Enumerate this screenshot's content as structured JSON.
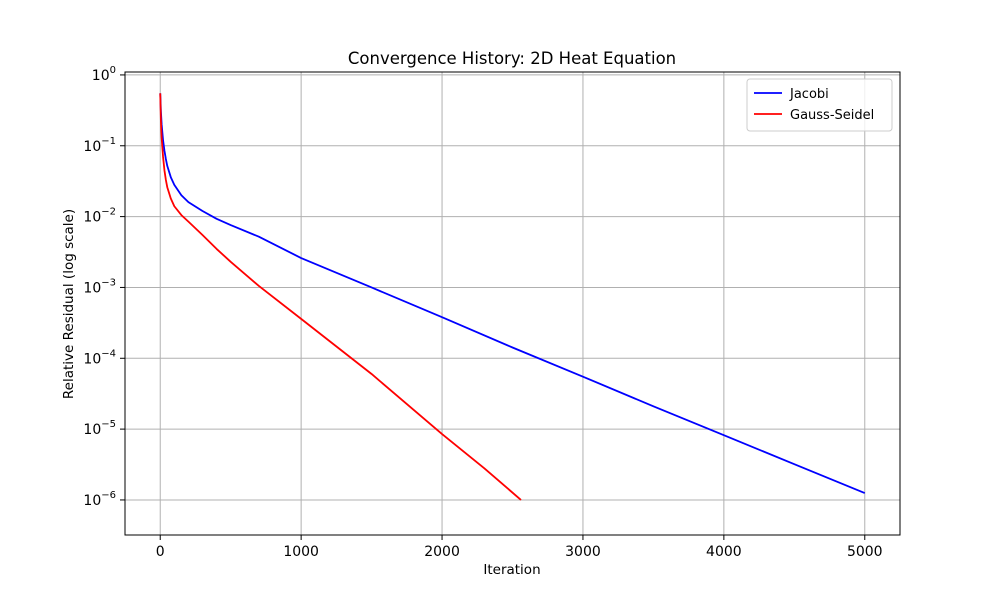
{
  "chart_data": {
    "type": "line",
    "title": "Convergence History: 2D Heat Equation",
    "xlabel": "Iteration",
    "ylabel": "Relative Residual (log scale)",
    "xlim": [
      -250,
      5250
    ],
    "ylim": [
      3.2e-07,
      1.1
    ],
    "yscale": "log",
    "grid": true,
    "legend_position": "top-right",
    "x_ticks": [
      0,
      1000,
      2000,
      3000,
      4000,
      5000
    ],
    "x_tick_labels": [
      "0",
      "1000",
      "2000",
      "3000",
      "4000",
      "5000"
    ],
    "y_ticks": [
      1e-06,
      1e-05,
      0.0001,
      0.001,
      0.01,
      0.1,
      1
    ],
    "y_tick_labels": [
      {
        "base": "10",
        "exp": "−6"
      },
      {
        "base": "10",
        "exp": "−5"
      },
      {
        "base": "10",
        "exp": "−4"
      },
      {
        "base": "10",
        "exp": "−3"
      },
      {
        "base": "10",
        "exp": "−2"
      },
      {
        "base": "10",
        "exp": "−1"
      },
      {
        "base": "10",
        "exp": "0"
      }
    ],
    "series": [
      {
        "name": "Jacobi",
        "color": "#0000ff",
        "points": [
          [
            0,
            0.55
          ],
          [
            5,
            0.3
          ],
          [
            10,
            0.2
          ],
          [
            20,
            0.12
          ],
          [
            30,
            0.085
          ],
          [
            40,
            0.065
          ],
          [
            50,
            0.052
          ],
          [
            75,
            0.036
          ],
          [
            100,
            0.028
          ],
          [
            150,
            0.02
          ],
          [
            200,
            0.016
          ],
          [
            300,
            0.012
          ],
          [
            400,
            0.0093
          ],
          [
            500,
            0.0076
          ],
          [
            700,
            0.0052
          ],
          [
            1000,
            0.0026
          ],
          [
            1500,
            0.001
          ],
          [
            2000,
            0.00038
          ],
          [
            2500,
            0.000142
          ],
          [
            3000,
            5.5e-05
          ],
          [
            3500,
            2.1e-05
          ],
          [
            4000,
            8.2e-06
          ],
          [
            4500,
            3.2e-06
          ],
          [
            5000,
            1.25e-06
          ]
        ]
      },
      {
        "name": "Gauss-Seidel",
        "color": "#ff0000",
        "points": [
          [
            0,
            0.55
          ],
          [
            5,
            0.22
          ],
          [
            10,
            0.13
          ],
          [
            20,
            0.07
          ],
          [
            30,
            0.045
          ],
          [
            40,
            0.033
          ],
          [
            50,
            0.026
          ],
          [
            75,
            0.018
          ],
          [
            100,
            0.014
          ],
          [
            150,
            0.0105
          ],
          [
            200,
            0.0085
          ],
          [
            300,
            0.0055
          ],
          [
            400,
            0.0035
          ],
          [
            500,
            0.0023
          ],
          [
            700,
            0.00105
          ],
          [
            1000,
            0.00036
          ],
          [
            1500,
            6e-05
          ],
          [
            2000,
            8.5e-06
          ],
          [
            2300,
            2.8e-06
          ],
          [
            2560,
            1e-06
          ]
        ]
      }
    ]
  }
}
